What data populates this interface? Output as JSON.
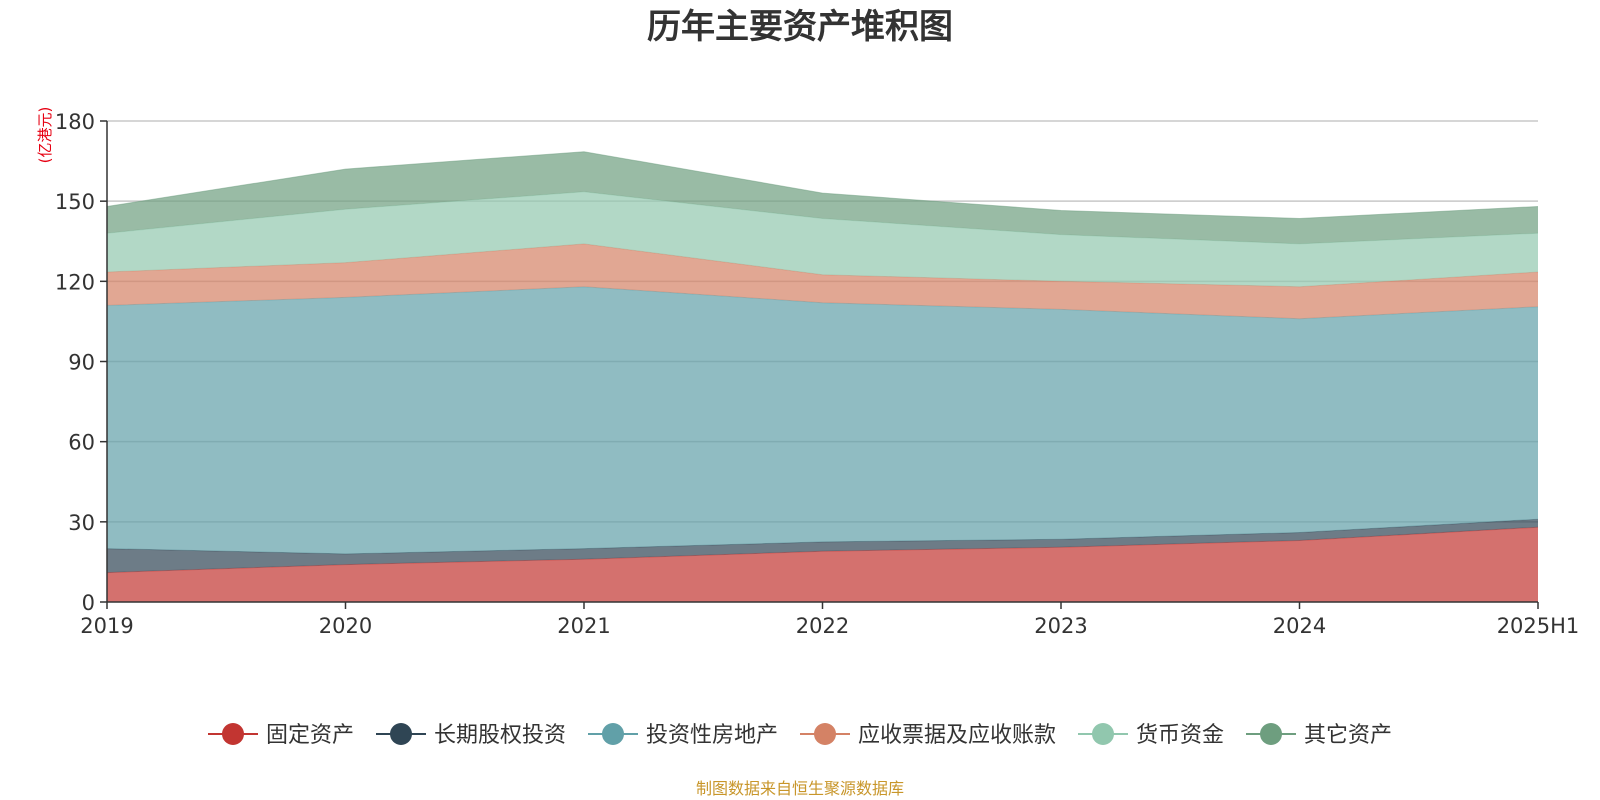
{
  "chart_data": {
    "type": "area",
    "stacked": true,
    "title": "历年主要资产堆积图",
    "ylabel": "(亿港元)",
    "xlabel": "",
    "categories": [
      "2019",
      "2020",
      "2021",
      "2022",
      "2023",
      "2024",
      "2025H1"
    ],
    "ylim": [
      0,
      180
    ],
    "yticks": [
      0,
      30,
      60,
      90,
      120,
      150,
      180
    ],
    "grid": true,
    "legend_position": "bottom",
    "source": "制图数据来自恒生聚源数据库",
    "series": [
      {
        "name": "固定资产",
        "color": "#c23531",
        "values": [
          11,
          14,
          16,
          19,
          20.5,
          23,
          28
        ]
      },
      {
        "name": "长期股权投资",
        "color": "#2f4554",
        "values": [
          9,
          4,
          4,
          3.5,
          3,
          3,
          3
        ]
      },
      {
        "name": "投资性房地产",
        "color": "#61a0a8",
        "values": [
          91,
          96,
          98,
          89.5,
          86,
          80,
          79.5
        ]
      },
      {
        "name": "应收票据及应收账款",
        "color": "#d48265",
        "values": [
          12.5,
          13,
          16,
          10.5,
          10.5,
          12,
          13
        ]
      },
      {
        "name": "货币资金",
        "color": "#91c7ae",
        "values": [
          14.5,
          20,
          19.5,
          21,
          17.5,
          16,
          14.5
        ]
      },
      {
        "name": "其它资产",
        "color": "#6e9e7f",
        "values": [
          10,
          15,
          15,
          9.5,
          9,
          9.5,
          10
        ]
      }
    ]
  }
}
